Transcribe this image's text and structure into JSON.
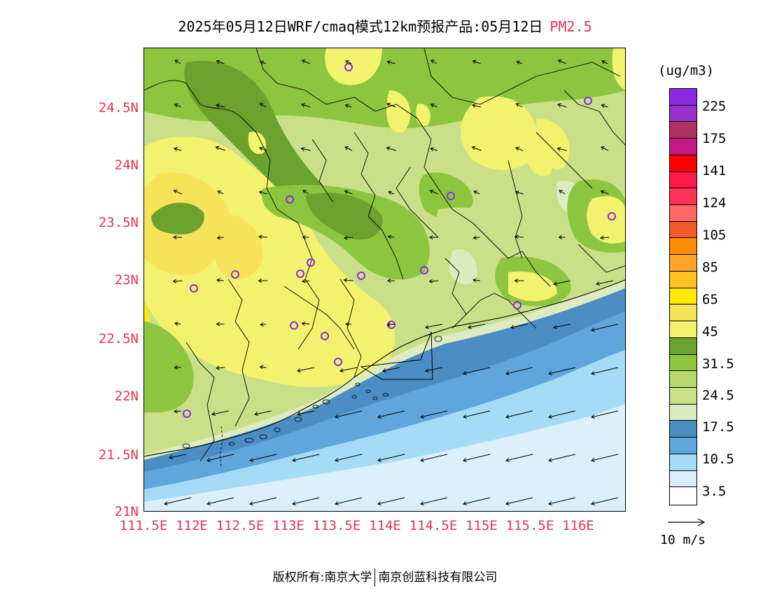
{
  "title": {
    "main": "2025年05月12日WRF/cmaq模式12km预报产品:05月12日",
    "variable": "PM2.5"
  },
  "units": "(ug/m3)",
  "lat_labels": [
    "24.5N",
    "24N",
    "23.5N",
    "23N",
    "22.5N",
    "22N",
    "21.5N",
    "21N"
  ],
  "lon_labels": [
    "111.5E",
    "112E",
    "112.5E",
    "113E",
    "113.5E",
    "114E",
    "114.5E",
    "115E",
    "115.5E",
    "116E"
  ],
  "colorbar": {
    "colors": [
      "#8a2be2",
      "#9932cc",
      "#b03060",
      "#c71585",
      "#ff0000",
      "#ff1a4a",
      "#ff3355",
      "#ff6666",
      "#f05a28",
      "#ff8c00",
      "#ffa52c",
      "#ffc21f",
      "#ffea00",
      "#f7e35a",
      "#f2f26e",
      "#6aa22d",
      "#8cc63f",
      "#b6d86a",
      "#c9e089",
      "#dcecc0",
      "#4a8ec4",
      "#5fa6dc",
      "#a5dcf5",
      "#dcf0fb",
      "#ffffff"
    ],
    "labels": [
      "225",
      "175",
      "141",
      "124",
      "105",
      "85",
      "65",
      "45",
      "31.5",
      "24.5",
      "17.5",
      "10.5",
      "3.5"
    ]
  },
  "reference_vector": "10 m/s",
  "copyright": {
    "prefix": "版权所有:南京大学",
    "company": "南京创蓝科技有限公司"
  },
  "palette": {
    "sea_light": "#dcf0fb",
    "sea_mid": "#a5dcf5",
    "sea_blue": "#5fa6dc",
    "sea_deep": "#4a8ec4",
    "pale_green": "#dcecc0",
    "light_green": "#c9e089",
    "green": "#8cc63f",
    "dark_green": "#6aa22d",
    "yellow": "#f2f26e",
    "gold": "#f7e35a",
    "accent": "#e8344e"
  }
}
